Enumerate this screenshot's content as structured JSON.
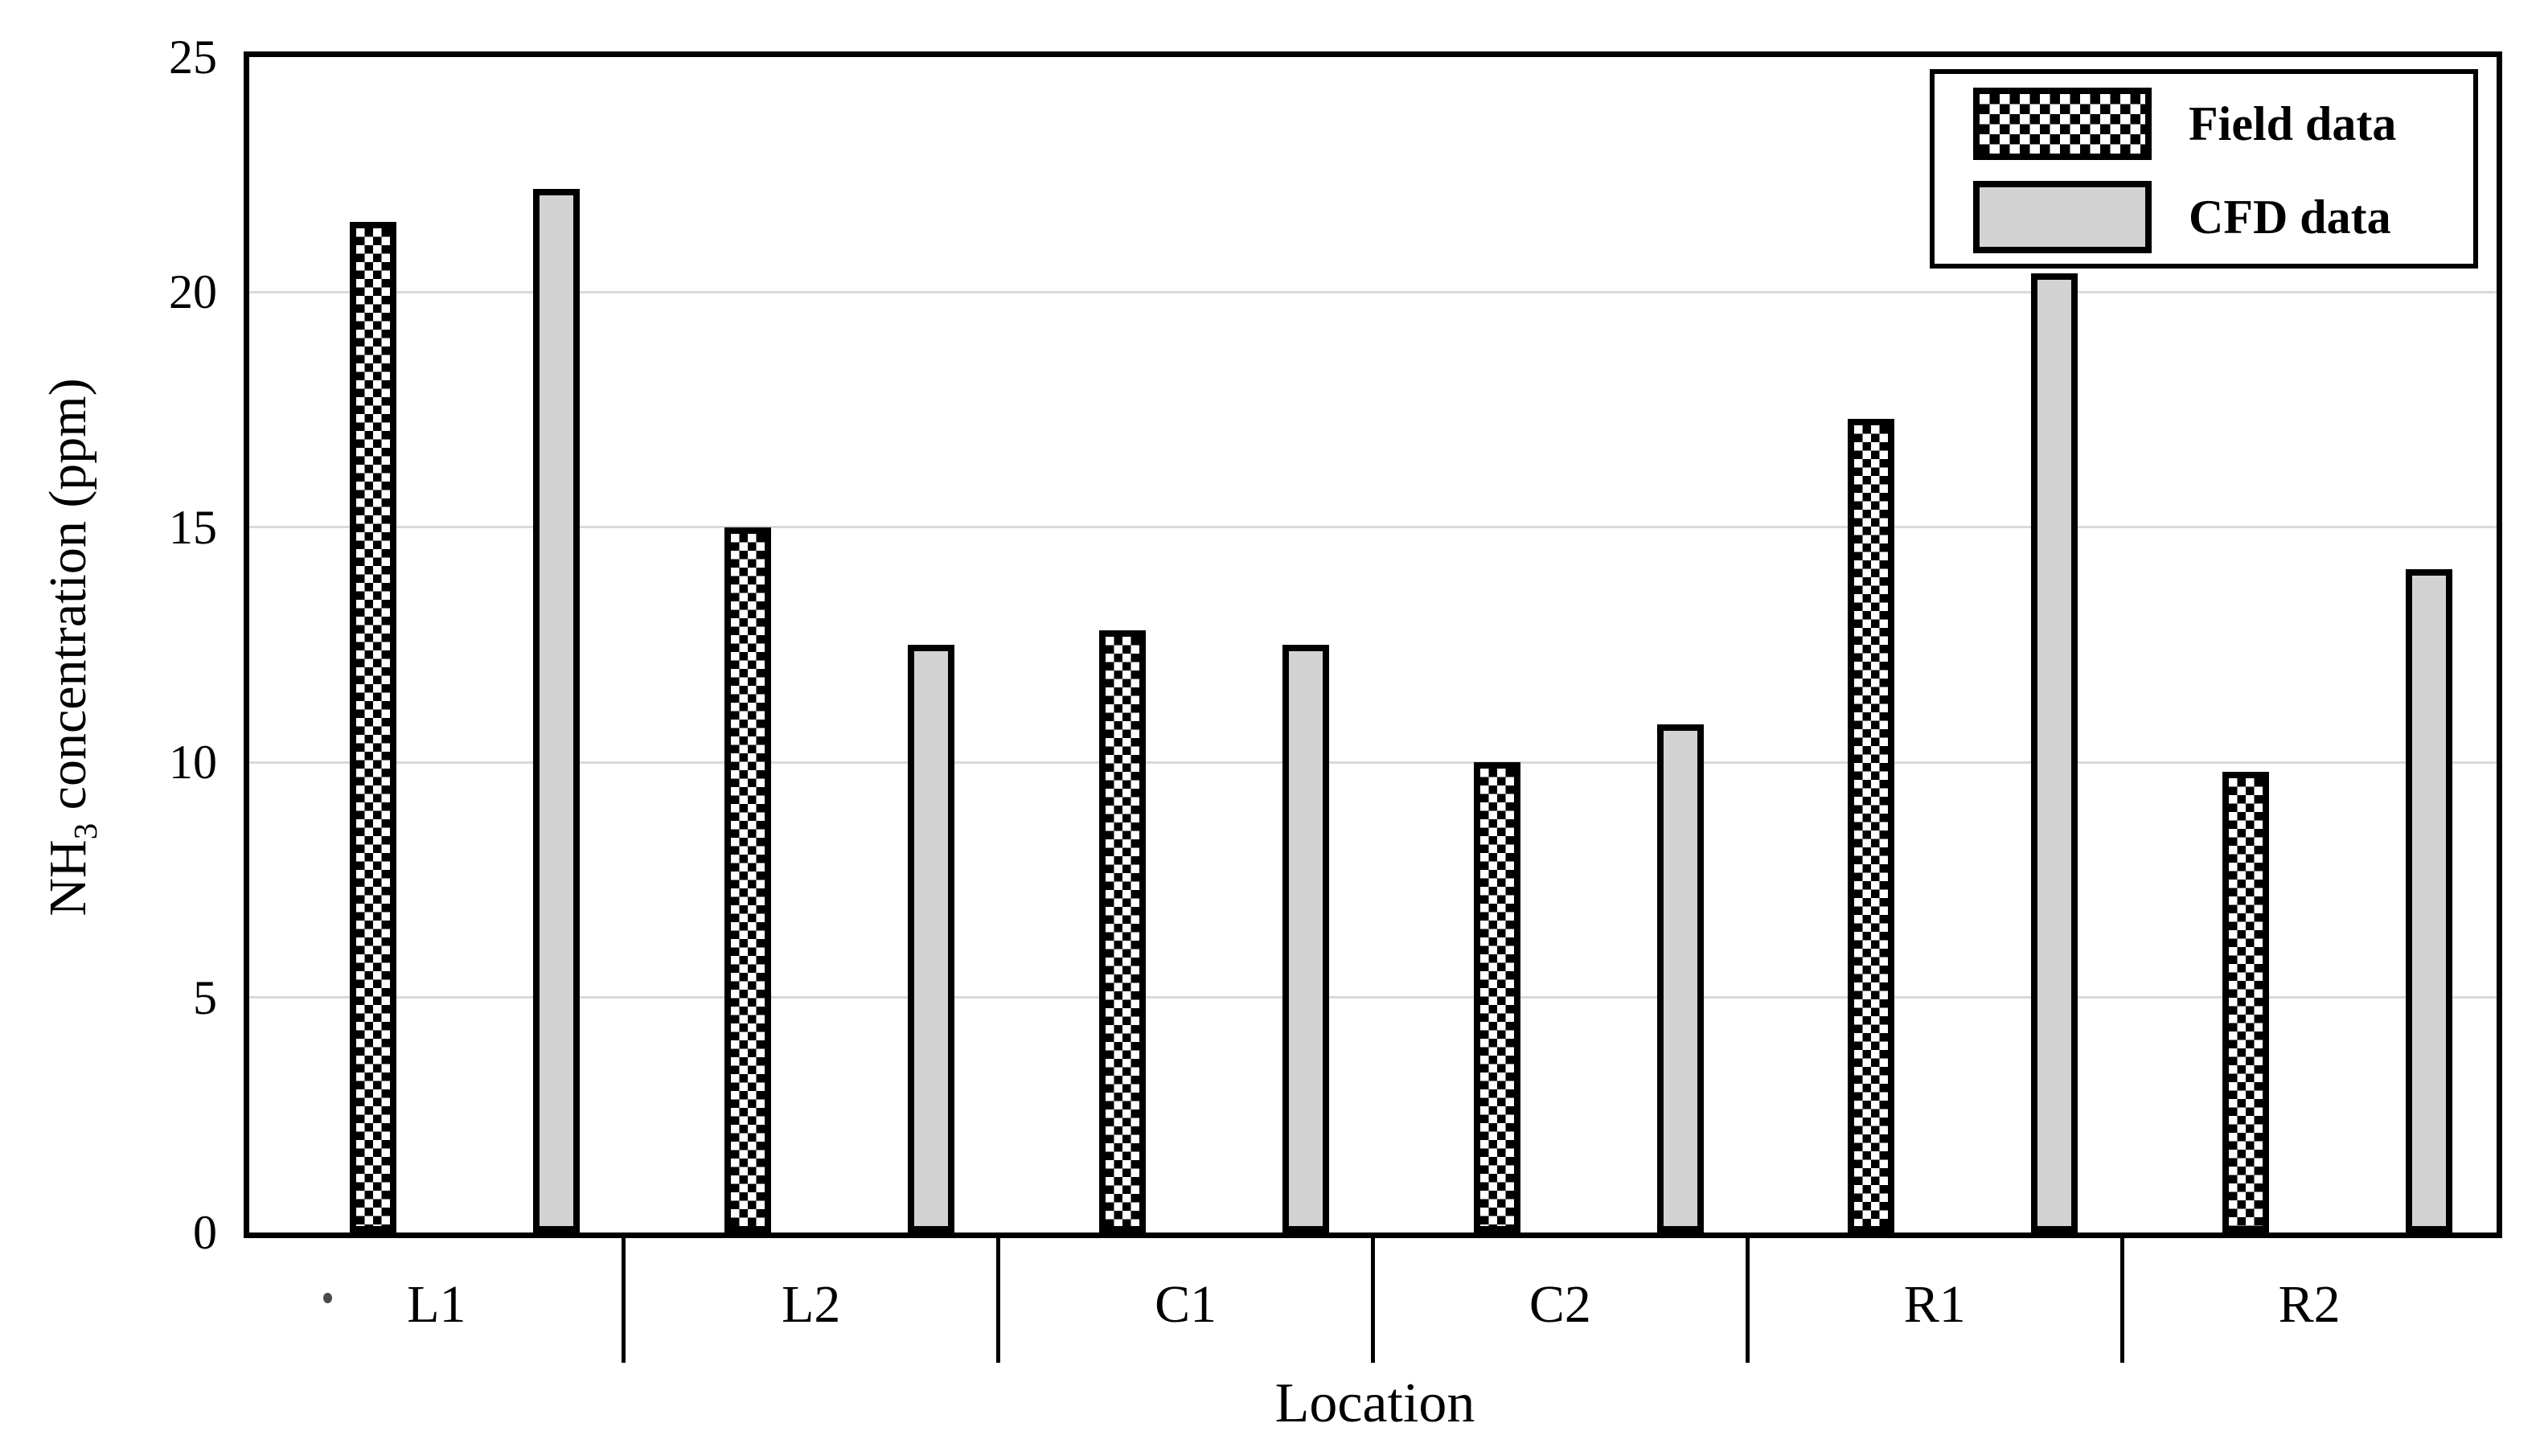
{
  "chart_data": {
    "type": "bar",
    "title": "",
    "categories": [
      "L1",
      "L2",
      "C1",
      "C2",
      "R1",
      "R2"
    ],
    "series": [
      {
        "name": "Field data",
        "style": "checkerboard",
        "values": [
          21.5,
          15.0,
          12.8,
          10.0,
          17.3,
          9.8
        ]
      },
      {
        "name": "CFD data",
        "style": "solid-gray",
        "fill": "#d3d3d3",
        "values": [
          22.2,
          12.5,
          12.5,
          10.8,
          20.4,
          14.1
        ]
      }
    ],
    "xlabel": "Location",
    "ylabel": "NH3 concentration (ppm)",
    "ylabel_parts": {
      "prefix": "NH",
      "sub": "3",
      "suffix": " concentration (ppm)"
    },
    "ylim": [
      0,
      25
    ],
    "yticks": [
      0,
      5,
      10,
      15,
      20,
      25
    ],
    "grid": "horizontal",
    "legend_position": "top-right"
  },
  "legend": {
    "items": [
      {
        "label": "Field data",
        "swatch": "checkerboard-swatch"
      },
      {
        "label": "CFD data",
        "swatch": "gray-swatch"
      }
    ]
  },
  "colors": {
    "bar_border": "#000000",
    "cfd_fill": "#d3d3d3",
    "gridline": "#d9d9d9",
    "frame": "#000000",
    "background": "#ffffff"
  }
}
